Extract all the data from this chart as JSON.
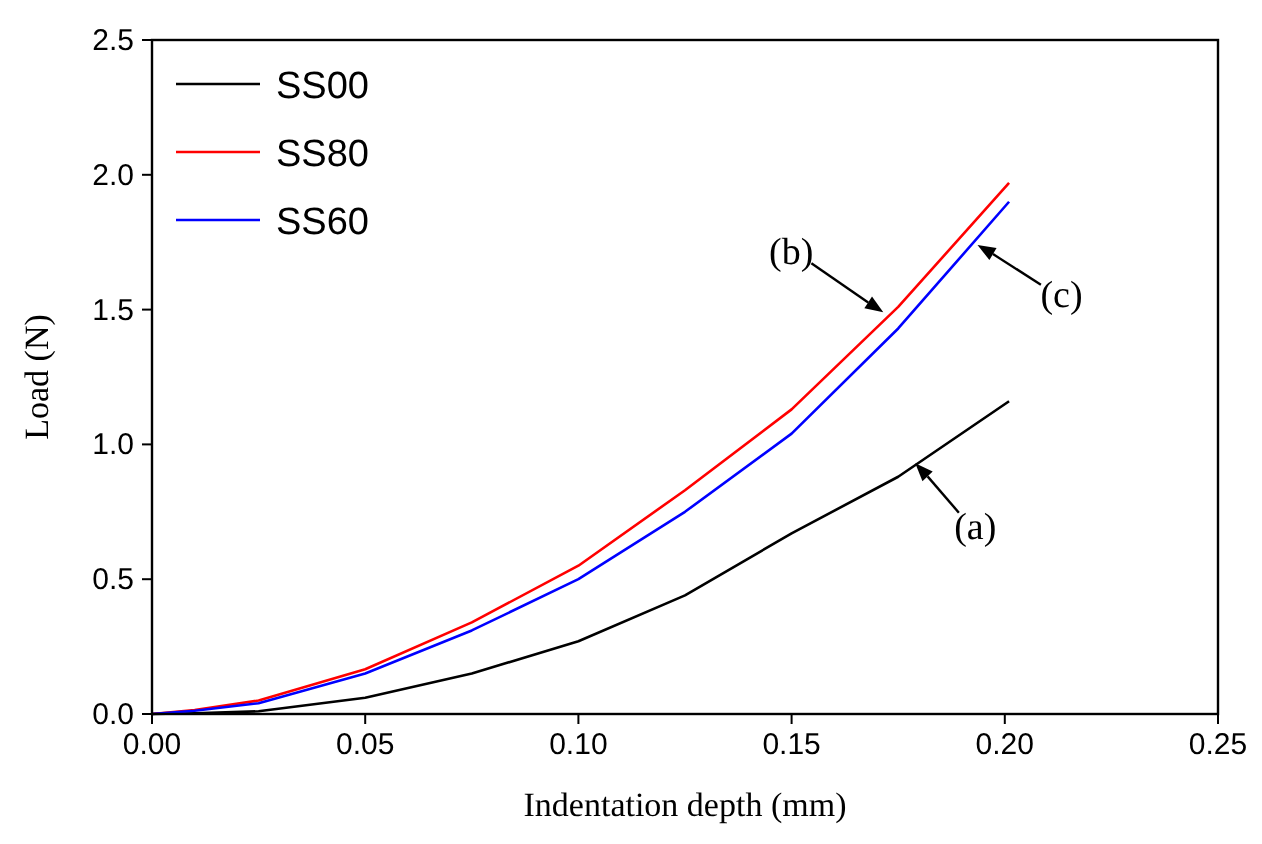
{
  "chart_data": {
    "type": "line",
    "xlabel": "Indentation depth (mm)",
    "ylabel": "Load (N)",
    "xlim": [
      0,
      0.25
    ],
    "ylim": [
      0,
      2.5
    ],
    "xticks": [
      {
        "value": 0,
        "label": "0.00"
      },
      {
        "value": 0.05,
        "label": "0.05"
      },
      {
        "value": 0.1,
        "label": "0.10"
      },
      {
        "value": 0.15,
        "label": "0.15"
      },
      {
        "value": 0.2,
        "label": "0.20"
      },
      {
        "value": 0.25,
        "label": "0.25"
      }
    ],
    "yticks": [
      {
        "value": 0,
        "label": "0.0"
      },
      {
        "value": 0.5,
        "label": "0.5"
      },
      {
        "value": 1,
        "label": "1.0"
      },
      {
        "value": 1.5,
        "label": "1.5"
      },
      {
        "value": 2,
        "label": "2.0"
      },
      {
        "value": 2.5,
        "label": "2.5"
      }
    ],
    "x": [
      0,
      0.01,
      0.025,
      0.05,
      0.075,
      0.1,
      0.125,
      0.15,
      0.175,
      0.201
    ],
    "series": [
      {
        "name": "SS00",
        "color": "#000000",
        "values": [
          0,
          0.003,
          0.01,
          0.06,
          0.15,
          0.27,
          0.44,
          0.67,
          0.88,
          1.16
        ]
      },
      {
        "name": "SS80",
        "color": "#ff0000",
        "values": [
          0,
          0.015,
          0.05,
          0.166,
          0.34,
          0.55,
          0.83,
          1.13,
          1.51,
          1.97
        ]
      },
      {
        "name": "SS60",
        "color": "#0000ff",
        "values": [
          0,
          0.012,
          0.04,
          0.15,
          0.31,
          0.5,
          0.75,
          1.04,
          1.43,
          1.9
        ]
      }
    ],
    "annotations": [
      {
        "text": "(a)",
        "x": 0.179,
        "y": 0.93
      },
      {
        "text": "(b)",
        "x": 0.1715,
        "y": 1.49
      },
      {
        "text": "(c)",
        "x": 0.1936,
        "y": 1.74
      }
    ],
    "legend": "top left",
    "grid": false,
    "line_style": "solid",
    "marker": "none"
  }
}
